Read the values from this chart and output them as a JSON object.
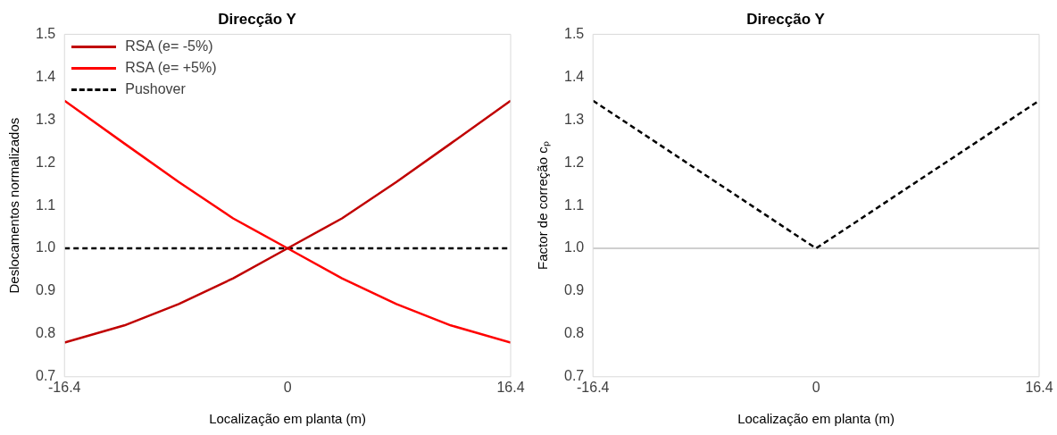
{
  "chart_data": [
    {
      "type": "line",
      "title": "Direcção Y",
      "xlabel": "Localização em planta (m)",
      "ylabel": "Deslocamentos normalizados",
      "x": [
        -16.4,
        -12,
        -8,
        -4,
        0,
        4,
        8,
        12,
        16.4
      ],
      "xlim": [
        -16.4,
        16.4
      ],
      "xticks": [
        -16.4,
        0,
        16.4
      ],
      "ylim": [
        0.7,
        1.5
      ],
      "yticks": [
        {
          "value": 0.7,
          "label": "0.7"
        },
        {
          "value": 0.8,
          "label": "0.8"
        },
        {
          "value": 0.9,
          "label": "0.9"
        },
        {
          "value": 1,
          "label": "1.0"
        },
        {
          "value": 1.1,
          "label": "1.1"
        },
        {
          "value": 1.2,
          "label": "1.2"
        },
        {
          "value": 1.3,
          "label": "1.3"
        },
        {
          "value": 1.4,
          "label": "1.4"
        },
        {
          "value": 1.5,
          "label": "1.5"
        }
      ],
      "grid": false,
      "legend": "top left",
      "marker": "none",
      "series": [
        {
          "name": "RSA (e= -5%)",
          "color": "#c00000",
          "line_style": "solid",
          "values": [
            0.78,
            0.82,
            0.87,
            0.93,
            1.0,
            1.07,
            1.155,
            1.245,
            1.345
          ]
        },
        {
          "name": "RSA (e= +5%)",
          "color": "#ff0000",
          "line_style": "solid",
          "values": [
            1.345,
            1.245,
            1.155,
            1.07,
            1.0,
            0.93,
            0.87,
            0.82,
            0.78
          ]
        },
        {
          "name": "Pushover",
          "color": "#000000",
          "line_style": "dashed",
          "x": [
            -16.4,
            16.4
          ],
          "values": [
            1.0,
            1.0
          ]
        }
      ]
    },
    {
      "type": "line",
      "title": "Direcção Y",
      "xlabel": "Localização em planta (m)",
      "ylabel": "Factor de correção cₚ",
      "xlim": [
        -16.4,
        16.4
      ],
      "xticks": [
        -16.4,
        0,
        16.4
      ],
      "ylim": [
        0.7,
        1.5
      ],
      "yticks": [
        {
          "value": 0.7,
          "label": "0.7"
        },
        {
          "value": 0.8,
          "label": "0.8"
        },
        {
          "value": 0.9,
          "label": "0.9"
        },
        {
          "value": 1,
          "label": "1.0"
        },
        {
          "value": 1.1,
          "label": "1.1"
        },
        {
          "value": 1.2,
          "label": "1.2"
        },
        {
          "value": 1.3,
          "label": "1.3"
        },
        {
          "value": 1.4,
          "label": "1.4"
        },
        {
          "value": 1.5,
          "label": "1.5"
        }
      ],
      "grid": false,
      "legend": false,
      "marker": "none",
      "ref_lines": [
        {
          "axis": "y",
          "value": 1.0,
          "color": "#bfbfbf"
        }
      ],
      "series": [
        {
          "color": "#000000",
          "line_style": "dashed",
          "x": [
            -16.4,
            0,
            16.4
          ],
          "values": [
            1.345,
            1.0,
            1.345
          ]
        }
      ]
    }
  ]
}
